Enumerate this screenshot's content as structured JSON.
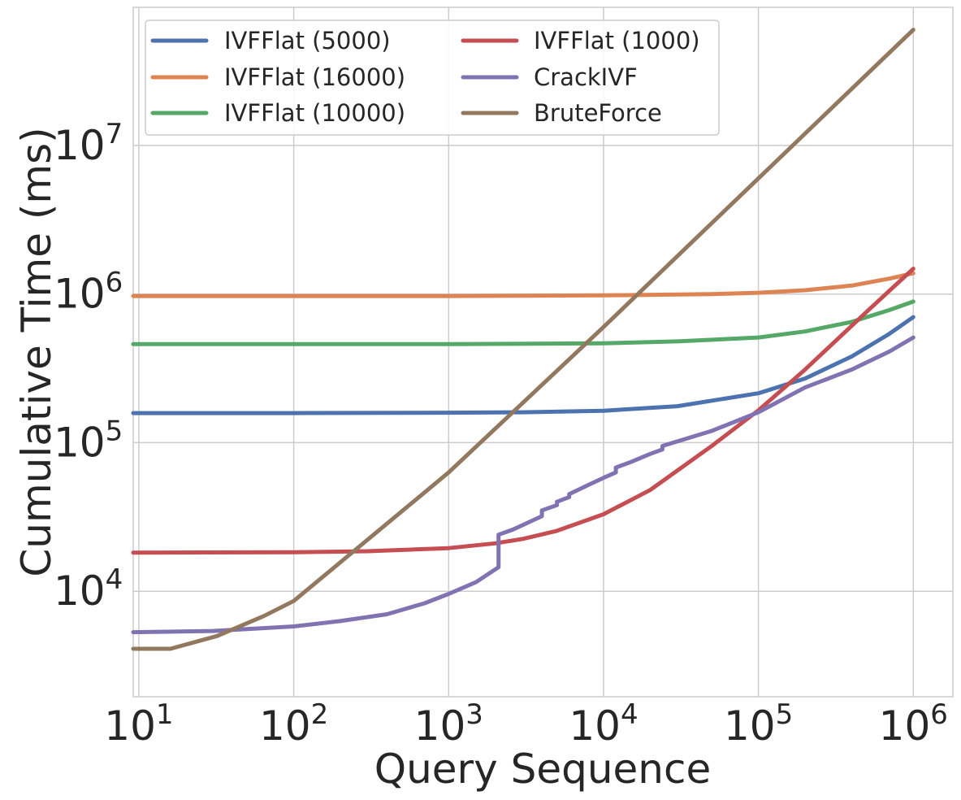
{
  "chart_data": {
    "type": "line",
    "title": "",
    "xlabel": "Query Sequence",
    "ylabel": "Cumulative Time (ms)",
    "xscale": "log",
    "yscale": "log",
    "xlim": [
      9.2,
      1800000
    ],
    "ylim": [
      1950,
      85000000
    ],
    "grid": true,
    "legend_position": "top-left",
    "legend_columns": 2,
    "x_ticks": [
      {
        "base": "10",
        "exp": "1",
        "value": 10
      },
      {
        "base": "10",
        "exp": "2",
        "value": 100
      },
      {
        "base": "10",
        "exp": "3",
        "value": 1000
      },
      {
        "base": "10",
        "exp": "4",
        "value": 10000
      },
      {
        "base": "10",
        "exp": "5",
        "value": 100000
      },
      {
        "base": "10",
        "exp": "6",
        "value": 1000000
      }
    ],
    "y_ticks": [
      {
        "base": "10",
        "exp": "4",
        "value": 10000
      },
      {
        "base": "10",
        "exp": "5",
        "value": 100000
      },
      {
        "base": "10",
        "exp": "6",
        "value": 1000000
      },
      {
        "base": "10",
        "exp": "7",
        "value": 10000000
      }
    ],
    "series": [
      {
        "name": "IVFFlat (5000)",
        "color": "#4c72b0",
        "x": [
          9.2,
          100,
          1000,
          3000,
          10000,
          30000,
          100000,
          200000,
          400000,
          700000,
          1000000
        ],
        "y": [
          158000,
          158000,
          159000,
          160000,
          164000,
          176000,
          215000,
          270000,
          380000,
          540000,
          700000
        ]
      },
      {
        "name": "IVFFlat (16000)",
        "color": "#dd8452",
        "x": [
          9.2,
          1000,
          10000,
          50000,
          100000,
          200000,
          400000,
          700000,
          1000000
        ],
        "y": [
          970000,
          970000,
          980000,
          1000000,
          1020000,
          1060000,
          1140000,
          1270000,
          1380000
        ]
      },
      {
        "name": "IVFFlat (10000)",
        "color": "#55a868",
        "x": [
          9.2,
          1000,
          10000,
          30000,
          100000,
          200000,
          400000,
          700000,
          1000000
        ],
        "y": [
          460000,
          460000,
          466000,
          480000,
          510000,
          560000,
          650000,
          780000,
          890000
        ]
      },
      {
        "name": "IVFFlat (1000)",
        "color": "#c44e52",
        "x": [
          9.2,
          100,
          300,
          1000,
          2000,
          3000,
          5000,
          10000,
          20000,
          50000,
          100000,
          200000,
          500000,
          1000000
        ],
        "y": [
          18200,
          18300,
          18600,
          19500,
          21000,
          22500,
          25500,
          33000,
          48000,
          95000,
          165000,
          310000,
          760000,
          1480000
        ]
      },
      {
        "name": "CrackIVF",
        "color": "#8172b2",
        "x": [
          9.2,
          30,
          100,
          200,
          400,
          700,
          1000,
          1500,
          2100,
          2100,
          2600,
          3500,
          4000,
          4000,
          5000,
          5000,
          6000,
          6000,
          8000,
          10000,
          12000,
          12000,
          15000,
          20000,
          24000,
          24000,
          50000,
          100000,
          200000,
          400000,
          700000,
          1000000
        ],
        "y": [
          5300,
          5400,
          5800,
          6300,
          7000,
          8300,
          9600,
          11500,
          14500,
          24000,
          26000,
          30000,
          32000,
          35000,
          38000,
          40000,
          43000,
          45000,
          52000,
          58000,
          63000,
          68000,
          74000,
          84000,
          90000,
          95000,
          120000,
          160000,
          235000,
          310000,
          410000,
          510000
        ]
      },
      {
        "name": "BruteForce",
        "color": "#937860",
        "x": [
          9.2,
          16,
          32,
          64,
          100,
          1000,
          10000,
          100000,
          1000000
        ],
        "y": [
          4100,
          4100,
          5000,
          6800,
          8600,
          63000,
          600000,
          6000000,
          60000000
        ]
      }
    ]
  }
}
